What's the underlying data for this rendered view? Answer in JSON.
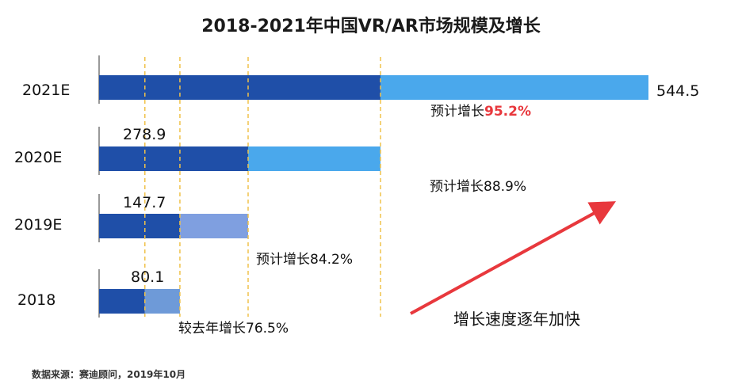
{
  "chart_data": {
    "type": "bar",
    "orientation": "horizontal",
    "title": "2018-2021年中国VR/AR市场规模及增长",
    "categories": [
      "2021E",
      "2020E",
      "2019E",
      "2018"
    ],
    "values": [
      544.5,
      278.9,
      147.7,
      80.1
    ],
    "value_labels": [
      "544.5",
      "278.9",
      "147.7",
      "80.1"
    ],
    "growth_labels": [
      {
        "prefix": "预计增长",
        "value": "95.2%",
        "highlight": true
      },
      {
        "prefix": "预计增长",
        "value": "88.9%",
        "highlight": false
      },
      {
        "prefix": "预计增长",
        "value": "84.2%",
        "highlight": false
      },
      {
        "prefix": "较去年增长",
        "value": "76.5%",
        "highlight": false
      }
    ],
    "trend_label": "增长速度逐年加快",
    "source": "数据来源：赛迪顾问，2019年10月",
    "colors": {
      "base": "#1f4fa8",
      "growth_light": "#4aa8ec",
      "growth_mid": "#6e9ad8",
      "growth_pale": "#7f9fe0",
      "guide": "#f0c24a",
      "arrow": "#e8383d"
    }
  }
}
